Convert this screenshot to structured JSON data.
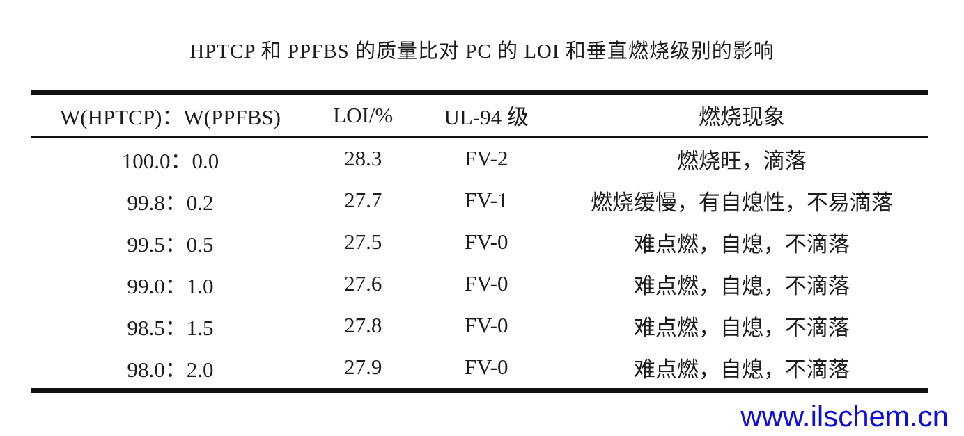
{
  "title": "HPTCP 和 PPFBS 的质量比对 PC 的 LOI 和垂直燃烧级别的影响",
  "table": {
    "columns": [
      "W(HPTCP)：W(PPFBS)",
      "LOI/%",
      "UL-94 级",
      "燃烧现象"
    ],
    "rows": [
      [
        "100.0：0.0",
        "28.3",
        "FV-2",
        "燃烧旺，滴落"
      ],
      [
        "99.8：0.2",
        "27.7",
        "FV-1",
        "燃烧缓慢，有自熄性，不易滴落"
      ],
      [
        "99.5：0.5",
        "27.5",
        "FV-0",
        "难点燃，自熄，不滴落"
      ],
      [
        "99.0：1.0",
        "27.6",
        "FV-0",
        "难点燃，自熄，不滴落"
      ],
      [
        "98.5：1.5",
        "27.8",
        "FV-0",
        "难点燃，自熄，不滴落"
      ],
      [
        "98.0：2.0",
        "27.9",
        "FV-0",
        "难点燃，自熄，不滴落"
      ]
    ]
  },
  "watermark": {
    "text": "www.ilschem.cn",
    "color": "#0e0ee2"
  }
}
